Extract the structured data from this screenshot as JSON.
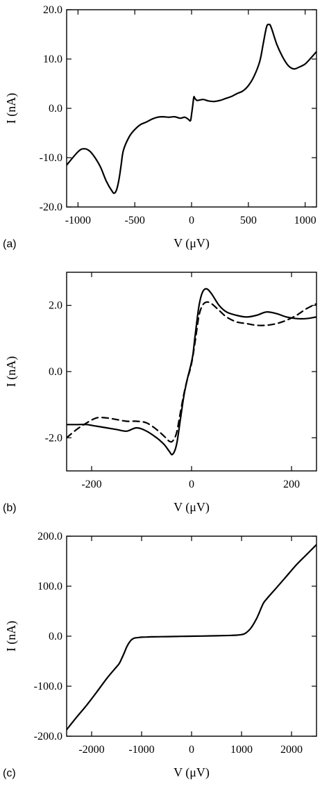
{
  "chart_data": [
    {
      "type": "line",
      "panel_label": "(a)",
      "xlabel": "V (μV)",
      "ylabel": "I (nA)",
      "xlim": [
        -1100,
        1100
      ],
      "ylim": [
        -20,
        20
      ],
      "x_ticks": [
        "-1000",
        "-500",
        "0",
        "500",
        "1000"
      ],
      "x_tick_values": [
        -1000,
        -500,
        0,
        500,
        1000
      ],
      "y_ticks": [
        "20.0",
        "10.0",
        "0.0",
        "-10.0",
        "-20.0"
      ],
      "y_tick_values": [
        20,
        10,
        0,
        -10,
        -20
      ],
      "series": [
        {
          "style": "solid",
          "x": [
            -1100,
            -1000,
            -950,
            -900,
            -850,
            -800,
            -750,
            -700,
            -680,
            -660,
            -640,
            -620,
            -600,
            -550,
            -500,
            -450,
            -400,
            -350,
            -300,
            -250,
            -200,
            -150,
            -100,
            -60,
            -30,
            -10,
            0,
            10,
            20,
            30,
            50,
            100,
            150,
            200,
            250,
            300,
            350,
            400,
            450,
            500,
            550,
            600,
            630,
            660,
            680,
            700,
            750,
            800,
            850,
            900,
            950,
            1000,
            1050,
            1100
          ],
          "y": [
            -11.5,
            -8.8,
            -8.2,
            -8.6,
            -10.0,
            -12.0,
            -14.8,
            -16.8,
            -17.2,
            -16.5,
            -14.5,
            -11.5,
            -8.5,
            -5.8,
            -4.3,
            -3.3,
            -2.8,
            -2.2,
            -1.8,
            -1.7,
            -1.8,
            -1.7,
            -2.0,
            -1.8,
            -2.2,
            -2.5,
            -1.2,
            0.5,
            2.3,
            2.0,
            1.6,
            1.8,
            1.5,
            1.4,
            1.6,
            2.0,
            2.4,
            3.0,
            3.5,
            4.6,
            6.5,
            9.5,
            13.0,
            16.5,
            17.0,
            16.5,
            13.0,
            10.5,
            8.7,
            8.0,
            8.4,
            9.0,
            10.2,
            11.5
          ]
        }
      ]
    },
    {
      "type": "line",
      "panel_label": "(b)",
      "xlabel": "V (μV)",
      "ylabel": "I (nA)",
      "xlim": [
        -250,
        250
      ],
      "ylim": [
        -3,
        3
      ],
      "x_ticks": [
        "-200",
        "0",
        "200"
      ],
      "x_tick_values": [
        -200,
        0,
        200
      ],
      "y_ticks": [
        "2.0",
        "0.0",
        "-2.0"
      ],
      "y_tick_values": [
        2,
        0,
        -2
      ],
      "series": [
        {
          "style": "solid",
          "x": [
            -250,
            -230,
            -210,
            -190,
            -170,
            -150,
            -130,
            -110,
            -90,
            -70,
            -55,
            -45,
            -38,
            -30,
            -22,
            -15,
            -8,
            -3,
            0,
            3,
            8,
            15,
            22,
            30,
            40,
            55,
            70,
            90,
            110,
            130,
            150,
            170,
            190,
            210,
            230,
            250
          ],
          "y": [
            -1.6,
            -1.6,
            -1.6,
            -1.65,
            -1.7,
            -1.75,
            -1.8,
            -1.7,
            -1.8,
            -2.0,
            -2.2,
            -2.4,
            -2.5,
            -2.2,
            -1.4,
            -0.7,
            -0.2,
            0.1,
            0.3,
            0.55,
            1.2,
            2.0,
            2.4,
            2.5,
            2.35,
            2.0,
            1.8,
            1.7,
            1.65,
            1.7,
            1.8,
            1.75,
            1.65,
            1.6,
            1.6,
            1.65
          ]
        },
        {
          "style": "dashed",
          "x": [
            -250,
            -230,
            -210,
            -190,
            -170,
            -150,
            -130,
            -110,
            -90,
            -70,
            -55,
            -45,
            -38,
            -30,
            -22,
            -15,
            -8,
            -3,
            0,
            3,
            8,
            15,
            22,
            30,
            40,
            55,
            70,
            90,
            110,
            130,
            150,
            170,
            190,
            210,
            230,
            250
          ],
          "y": [
            -2.0,
            -1.75,
            -1.55,
            -1.4,
            -1.4,
            -1.45,
            -1.5,
            -1.5,
            -1.55,
            -1.75,
            -1.95,
            -2.1,
            -2.1,
            -1.85,
            -1.2,
            -0.65,
            -0.2,
            0.05,
            0.25,
            0.5,
            1.0,
            1.7,
            2.0,
            2.1,
            2.05,
            1.85,
            1.65,
            1.5,
            1.45,
            1.4,
            1.4,
            1.45,
            1.55,
            1.7,
            1.9,
            2.05
          ]
        }
      ]
    },
    {
      "type": "line",
      "panel_label": "(c)",
      "xlabel": "V (μV)",
      "ylabel": "I (nA)",
      "xlim": [
        -2500,
        2500
      ],
      "ylim": [
        -200,
        200
      ],
      "x_ticks": [
        "-2000",
        "-1000",
        "0",
        "1000",
        "2000"
      ],
      "x_tick_values": [
        -2000,
        -1000,
        0,
        1000,
        2000
      ],
      "y_ticks": [
        "200.0",
        "100.0",
        "0.0",
        "-100.0",
        "-200.0"
      ],
      "y_tick_values": [
        200,
        100,
        0,
        -100,
        -200
      ],
      "series": [
        {
          "style": "solid",
          "x": [
            -2500,
            -2300,
            -2100,
            -1900,
            -1700,
            -1550,
            -1450,
            -1400,
            -1350,
            -1300,
            -1250,
            -1200,
            -1150,
            -1100,
            -1050,
            -1000,
            -900,
            -800,
            -600,
            -400,
            -200,
            0,
            200,
            400,
            600,
            800,
            900,
            1000,
            1050,
            1100,
            1150,
            1200,
            1250,
            1300,
            1350,
            1400,
            1450,
            1550,
            1700,
            1900,
            2100,
            2300,
            2500
          ],
          "y": [
            -187,
            -162,
            -138,
            -112,
            -85,
            -67,
            -55,
            -45,
            -34,
            -22,
            -13,
            -7,
            -4,
            -3,
            -2.5,
            -2,
            -1.6,
            -1.3,
            -1,
            -0.7,
            -0.3,
            0,
            0.3,
            0.7,
            1.1,
            1.6,
            2.1,
            3.2,
            4.5,
            7.5,
            12,
            18,
            26,
            35,
            46,
            58,
            68,
            80,
            97,
            120,
            143,
            163,
            183
          ]
        }
      ]
    }
  ]
}
